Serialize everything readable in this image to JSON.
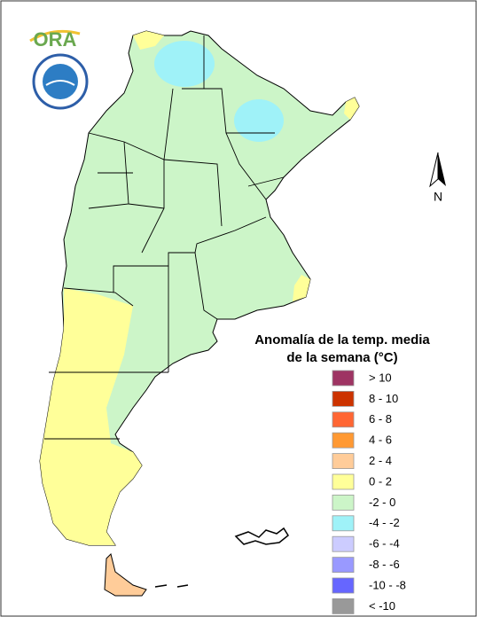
{
  "logo": {
    "text": "ORA"
  },
  "north_arrow": {
    "label": "N"
  },
  "legend": {
    "title": [
      "Anomalía de la temp. media",
      "de la semana (°C)"
    ],
    "items": [
      {
        "label": "> 10",
        "color": "#9e3463"
      },
      {
        "label": "8 - 10",
        "color": "#cc3300"
      },
      {
        "label": "6 - 8",
        "color": "#ff6633"
      },
      {
        "label": "4 - 6",
        "color": "#ff9933"
      },
      {
        "label": "2 - 4",
        "color": "#ffcc99"
      },
      {
        "label": "0 - 2",
        "color": "#ffff99"
      },
      {
        "label": "-2 - 0",
        "color": "#ccf5c8"
      },
      {
        "label": "-4 - -2",
        "color": "#9ff2f8"
      },
      {
        "label": "-6 - -4",
        "color": "#ccccff"
      },
      {
        "label": "-8 - -6",
        "color": "#9999ff"
      },
      {
        "label": "-10 - -8",
        "color": "#6666ff"
      },
      {
        "label": "< -10",
        "color": "#999999"
      }
    ]
  }
}
